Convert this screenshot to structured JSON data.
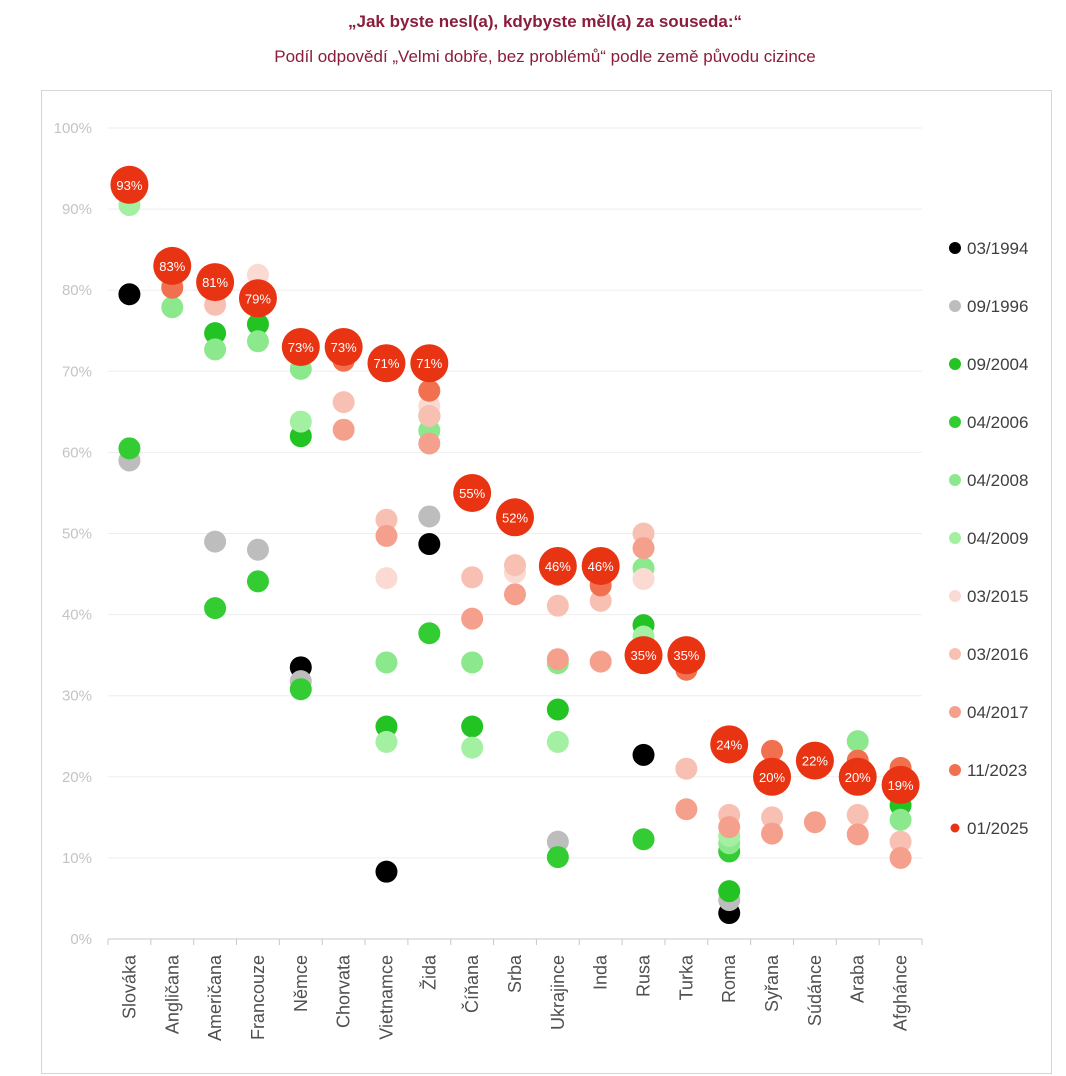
{
  "title": "„Jak byste nesl(a), kdybyste měl(a) za souseda:“",
  "subtitle": "Podíl odpovědí „Velmi dobře, bez problémů“ podle země původu cizince",
  "chart_data": {
    "type": "scatter",
    "title": "„Jak byste nesl(a), kdybyste měl(a) za souseda:“",
    "subtitle": "Podíl odpovědí „Velmi dobře, bez problémů“ podle země původu cizince",
    "ylim": [
      0,
      100
    ],
    "y_ticks": [
      "0%",
      "10%",
      "20%",
      "30%",
      "40%",
      "50%",
      "60%",
      "70%",
      "80%",
      "90%",
      "100%"
    ],
    "grid": true,
    "legend_position": "right",
    "categories": [
      "Slováka",
      "Angličana",
      "Američana",
      "Francouze",
      "Němce",
      "Chorvata",
      "Vietnamce",
      "Žida",
      "Číňana",
      "Srba",
      "Ukrajince",
      "Inda",
      "Rusa",
      "Turka",
      "Roma",
      "Syřana",
      "Súdánce",
      "Araba",
      "Afghánce"
    ],
    "series": [
      {
        "name": "03/1994",
        "color": "#000000",
        "values": [
          79.5,
          null,
          null,
          null,
          33.5,
          null,
          8.3,
          48.7,
          null,
          null,
          null,
          null,
          22.7,
          null,
          3.2,
          null,
          null,
          null,
          null
        ]
      },
      {
        "name": "09/1996",
        "color": "#bdbdbd",
        "values": [
          59,
          null,
          49,
          48,
          31.8,
          null,
          null,
          52.1,
          null,
          null,
          12,
          null,
          null,
          null,
          4.8,
          null,
          null,
          null,
          null
        ]
      },
      {
        "name": "09/2004",
        "color": "#22c322",
        "values": [
          null,
          null,
          74.7,
          75.8,
          62,
          null,
          26.2,
          64.5,
          26.2,
          null,
          28.3,
          null,
          38.7,
          null,
          5.9,
          null,
          null,
          null,
          16.5
        ]
      },
      {
        "name": "04/2006",
        "color": "#33cc33",
        "values": [
          60.5,
          null,
          40.8,
          44.1,
          30.8,
          null,
          null,
          37.7,
          null,
          null,
          10.1,
          null,
          12.3,
          null,
          10.8,
          null,
          null,
          null,
          null
        ]
      },
      {
        "name": "04/2008",
        "color": "#8ce88c",
        "values": [
          null,
          77.9,
          72.7,
          73.7,
          70.3,
          null,
          34.1,
          62.7,
          34.1,
          null,
          34,
          null,
          45.7,
          null,
          11.8,
          null,
          null,
          24.4,
          14.7
        ]
      },
      {
        "name": "04/2009",
        "color": "#a3f0a3",
        "values": [
          90.5,
          null,
          81.9,
          null,
          63.8,
          null,
          24.3,
          null,
          23.6,
          null,
          24.3,
          null,
          37.3,
          null,
          12.7,
          null,
          null,
          null,
          null
        ]
      },
      {
        "name": "03/2015",
        "color": "#fadad2",
        "values": [
          null,
          null,
          null,
          81.9,
          null,
          null,
          44.5,
          65.7,
          null,
          45.2,
          null,
          null,
          44.4,
          null,
          null,
          null,
          null,
          null,
          null
        ]
      },
      {
        "name": "03/2016",
        "color": "#f8c0b2",
        "values": [
          null,
          80.6,
          78.2,
          null,
          null,
          66.2,
          51.7,
          64.5,
          44.6,
          46.1,
          41.1,
          41.7,
          50,
          21,
          15.3,
          15,
          null,
          15.3,
          12
        ]
      },
      {
        "name": "04/2017",
        "color": "#f4a08d",
        "values": [
          null,
          null,
          null,
          null,
          null,
          62.8,
          49.7,
          61.1,
          39.5,
          42.5,
          34.5,
          34.2,
          48.2,
          16,
          13.8,
          13,
          14.4,
          12.9,
          10
        ]
      },
      {
        "name": "11/2023",
        "color": "#f07050",
        "values": [
          null,
          80.3,
          null,
          null,
          null,
          71.3,
          null,
          67.6,
          null,
          null,
          44.9,
          43.6,
          null,
          33.2,
          null,
          23.2,
          null,
          22,
          21.1
        ]
      },
      {
        "name": "01/2025",
        "color": "#e83412",
        "values": [
          93,
          83,
          81,
          79,
          73,
          73,
          71,
          71,
          55,
          52,
          46,
          46,
          35,
          35,
          24,
          20,
          22,
          20,
          19
        ],
        "labels": [
          "93%",
          "83%",
          "81%",
          "79%",
          "73%",
          "73%",
          "71%",
          "71%",
          "55%",
          "52%",
          "46%",
          "46%",
          "35%",
          "35%",
          "24%",
          "20%",
          "22%",
          "20%",
          "19%"
        ]
      }
    ]
  }
}
